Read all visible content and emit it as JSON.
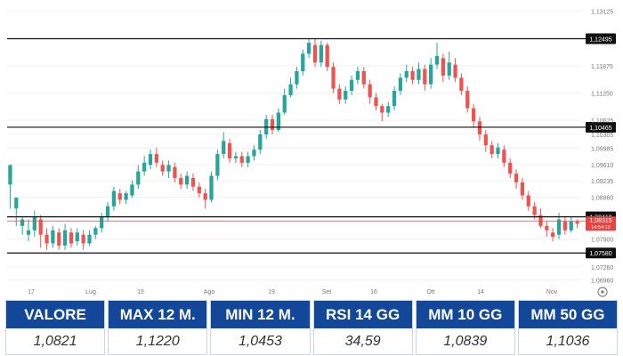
{
  "chart_data": {
    "type": "candlestick",
    "x_ticks": [
      "17",
      "Lug",
      "15",
      "Ago",
      "19",
      "Set",
      "16",
      "Ott",
      "14",
      "Nov"
    ],
    "y_ticks": [
      "1,13125",
      "1,11875",
      "1,11250",
      "1,10625",
      "1,10305",
      "1,09985",
      "1,09610",
      "1,09235",
      "1,08860",
      "1,07900",
      "1,07260",
      "1,06960"
    ],
    "ylim": [
      1.0685,
      1.1322
    ],
    "levels": [
      {
        "value": 1.12495,
        "label": "1,12495"
      },
      {
        "value": 1.10465,
        "label": "1,10465"
      },
      {
        "value": 1.0841,
        "label": "1,08410"
      },
      {
        "value": 1.0758,
        "label": "1,07580"
      }
    ],
    "current": {
      "value": 1.08315,
      "label": "1,08315",
      "sublabel": "14:54:13"
    },
    "candles": [
      [
        1.0915,
        1.096,
        1.093,
        1.086
      ],
      [
        1.086,
        1.0885,
        1.0868,
        1.082
      ],
      [
        1.082,
        1.0835,
        1.084,
        1.08
      ],
      [
        1.08,
        1.081,
        1.0835,
        1.0785
      ],
      [
        1.081,
        1.084,
        1.0855,
        1.0795
      ],
      [
        1.0835,
        1.08,
        1.0845,
        1.077
      ],
      [
        1.08,
        1.078,
        1.0815,
        1.0765
      ],
      [
        1.078,
        1.081,
        1.082,
        1.077
      ],
      [
        1.0805,
        1.0775,
        1.0815,
        1.0765
      ],
      [
        1.0775,
        1.081,
        1.0825,
        1.0765
      ],
      [
        1.0805,
        1.078,
        1.0815,
        1.077
      ],
      [
        1.0785,
        1.0805,
        1.0815,
        1.0775
      ],
      [
        1.08,
        1.078,
        1.081,
        1.0765
      ],
      [
        1.078,
        1.08,
        1.081,
        1.0775
      ],
      [
        1.08,
        1.0815,
        1.082,
        1.079
      ],
      [
        1.0815,
        1.084,
        1.085,
        1.0805
      ],
      [
        1.084,
        1.0865,
        1.0875,
        1.083
      ],
      [
        1.0865,
        1.09,
        1.091,
        1.0855
      ],
      [
        1.0895,
        1.088,
        1.0905,
        1.087
      ],
      [
        1.088,
        1.0895,
        1.09,
        1.087
      ],
      [
        1.089,
        1.0915,
        1.0925,
        1.0885
      ],
      [
        1.0915,
        1.0945,
        1.096,
        1.0905
      ],
      [
        1.0945,
        1.0965,
        1.098,
        1.0935
      ],
      [
        1.096,
        1.0985,
        1.0995,
        1.095
      ],
      [
        1.0985,
        1.0965,
        1.1,
        1.0955
      ],
      [
        1.096,
        1.0945,
        1.097,
        1.0935
      ],
      [
        1.0945,
        1.096,
        1.097,
        1.093
      ],
      [
        1.0955,
        1.093,
        1.0965,
        1.092
      ],
      [
        1.093,
        1.0915,
        1.094,
        1.0905
      ],
      [
        1.0915,
        1.0935,
        1.0945,
        1.0905
      ],
      [
        1.093,
        1.091,
        1.094,
        1.09
      ],
      [
        1.091,
        1.0895,
        1.092,
        1.0885
      ],
      [
        1.0895,
        1.088,
        1.0905,
        1.086
      ],
      [
        1.088,
        1.0935,
        1.0945,
        1.0875
      ],
      [
        1.0935,
        1.0985,
        1.0995,
        1.0925
      ],
      [
        1.0985,
        1.1015,
        1.1035,
        1.0975
      ],
      [
        1.101,
        1.0975,
        1.102,
        1.0965
      ],
      [
        1.0975,
        1.098,
        1.099,
        1.0965
      ],
      [
        1.098,
        1.0965,
        1.099,
        1.0955
      ],
      [
        1.0965,
        1.098,
        1.099,
        1.0955
      ],
      [
        1.098,
        1.0995,
        1.1005,
        1.097
      ],
      [
        1.0995,
        1.103,
        1.104,
        1.0985
      ],
      [
        1.103,
        1.1065,
        1.1075,
        1.102
      ],
      [
        1.1065,
        1.104,
        1.1075,
        1.103
      ],
      [
        1.104,
        1.108,
        1.109,
        1.1035
      ],
      [
        1.108,
        1.112,
        1.1135,
        1.1075
      ],
      [
        1.112,
        1.1145,
        1.116,
        1.1115
      ],
      [
        1.1145,
        1.1175,
        1.1185,
        1.1135
      ],
      [
        1.1175,
        1.1215,
        1.1225,
        1.1165
      ],
      [
        1.1215,
        1.124,
        1.125,
        1.1205
      ],
      [
        1.1235,
        1.1195,
        1.125,
        1.1185
      ],
      [
        1.1195,
        1.1235,
        1.1245,
        1.1185
      ],
      [
        1.1235,
        1.1185,
        1.124,
        1.1175
      ],
      [
        1.1185,
        1.1135,
        1.1195,
        1.1125
      ],
      [
        1.1135,
        1.111,
        1.1145,
        1.11
      ],
      [
        1.111,
        1.113,
        1.114,
        1.11
      ],
      [
        1.113,
        1.1155,
        1.1165,
        1.112
      ],
      [
        1.1155,
        1.1175,
        1.1185,
        1.1145
      ],
      [
        1.1175,
        1.1145,
        1.1185,
        1.1135
      ],
      [
        1.1145,
        1.1115,
        1.1155,
        1.11
      ],
      [
        1.1115,
        1.1095,
        1.1125,
        1.1085
      ],
      [
        1.1095,
        1.108,
        1.11,
        1.106
      ],
      [
        1.108,
        1.1095,
        1.1105,
        1.107
      ],
      [
        1.1095,
        1.113,
        1.114,
        1.1085
      ],
      [
        1.113,
        1.116,
        1.117,
        1.112
      ],
      [
        1.116,
        1.1175,
        1.119,
        1.115
      ],
      [
        1.1175,
        1.1155,
        1.1185,
        1.1145
      ],
      [
        1.1155,
        1.118,
        1.1195,
        1.1145
      ],
      [
        1.118,
        1.1145,
        1.119,
        1.113
      ],
      [
        1.1145,
        1.119,
        1.1205,
        1.1135
      ],
      [
        1.119,
        1.121,
        1.124,
        1.118
      ],
      [
        1.1205,
        1.1165,
        1.1215,
        1.115
      ],
      [
        1.1165,
        1.1195,
        1.122,
        1.1155
      ],
      [
        1.119,
        1.116,
        1.1205,
        1.115
      ],
      [
        1.116,
        1.113,
        1.117,
        1.112
      ],
      [
        1.113,
        1.109,
        1.114,
        1.108
      ],
      [
        1.109,
        1.106,
        1.11,
        1.1045
      ],
      [
        1.106,
        1.103,
        1.107,
        1.1015
      ],
      [
        1.103,
        1.1005,
        1.104,
        1.099
      ],
      [
        1.1005,
        1.0985,
        1.1015,
        1.0975
      ],
      [
        1.0985,
        1.1,
        1.101,
        1.0975
      ],
      [
        1.0995,
        1.0965,
        1.1005,
        1.0955
      ],
      [
        1.0965,
        1.094,
        1.0975,
        1.093
      ],
      [
        1.094,
        1.092,
        1.095,
        1.0905
      ],
      [
        1.092,
        1.089,
        1.093,
        1.088
      ],
      [
        1.089,
        1.0865,
        1.09,
        1.0855
      ],
      [
        1.0865,
        1.0845,
        1.0875,
        1.0835
      ],
      [
        1.0845,
        1.082,
        1.086,
        1.0815
      ],
      [
        1.082,
        1.081,
        1.083,
        1.0795
      ],
      [
        1.0805,
        1.0795,
        1.0815,
        1.0785
      ],
      [
        1.08,
        1.0835,
        1.085,
        1.079
      ],
      [
        1.083,
        1.081,
        1.084,
        1.08
      ],
      [
        1.081,
        1.083,
        1.084,
        1.0805
      ],
      [
        1.083,
        1.0825,
        1.0835,
        1.0815
      ]
    ]
  },
  "stats": [
    {
      "label": "VALORE",
      "value": "1,0821"
    },
    {
      "label": "MAX 12 M.",
      "value": "1,1220"
    },
    {
      "label": "MIN 12 M.",
      "value": "1,0453"
    },
    {
      "label": "RSI 14 GG",
      "value": "34,59"
    },
    {
      "label": "MM 10 GG",
      "value": "1,0839"
    },
    {
      "label": "MM 50 GG",
      "value": "1,1036"
    }
  ],
  "colors": {
    "up": "#26a69a",
    "down": "#ef5350",
    "header_bg": "#13479a",
    "current_badge": "#e84343"
  }
}
